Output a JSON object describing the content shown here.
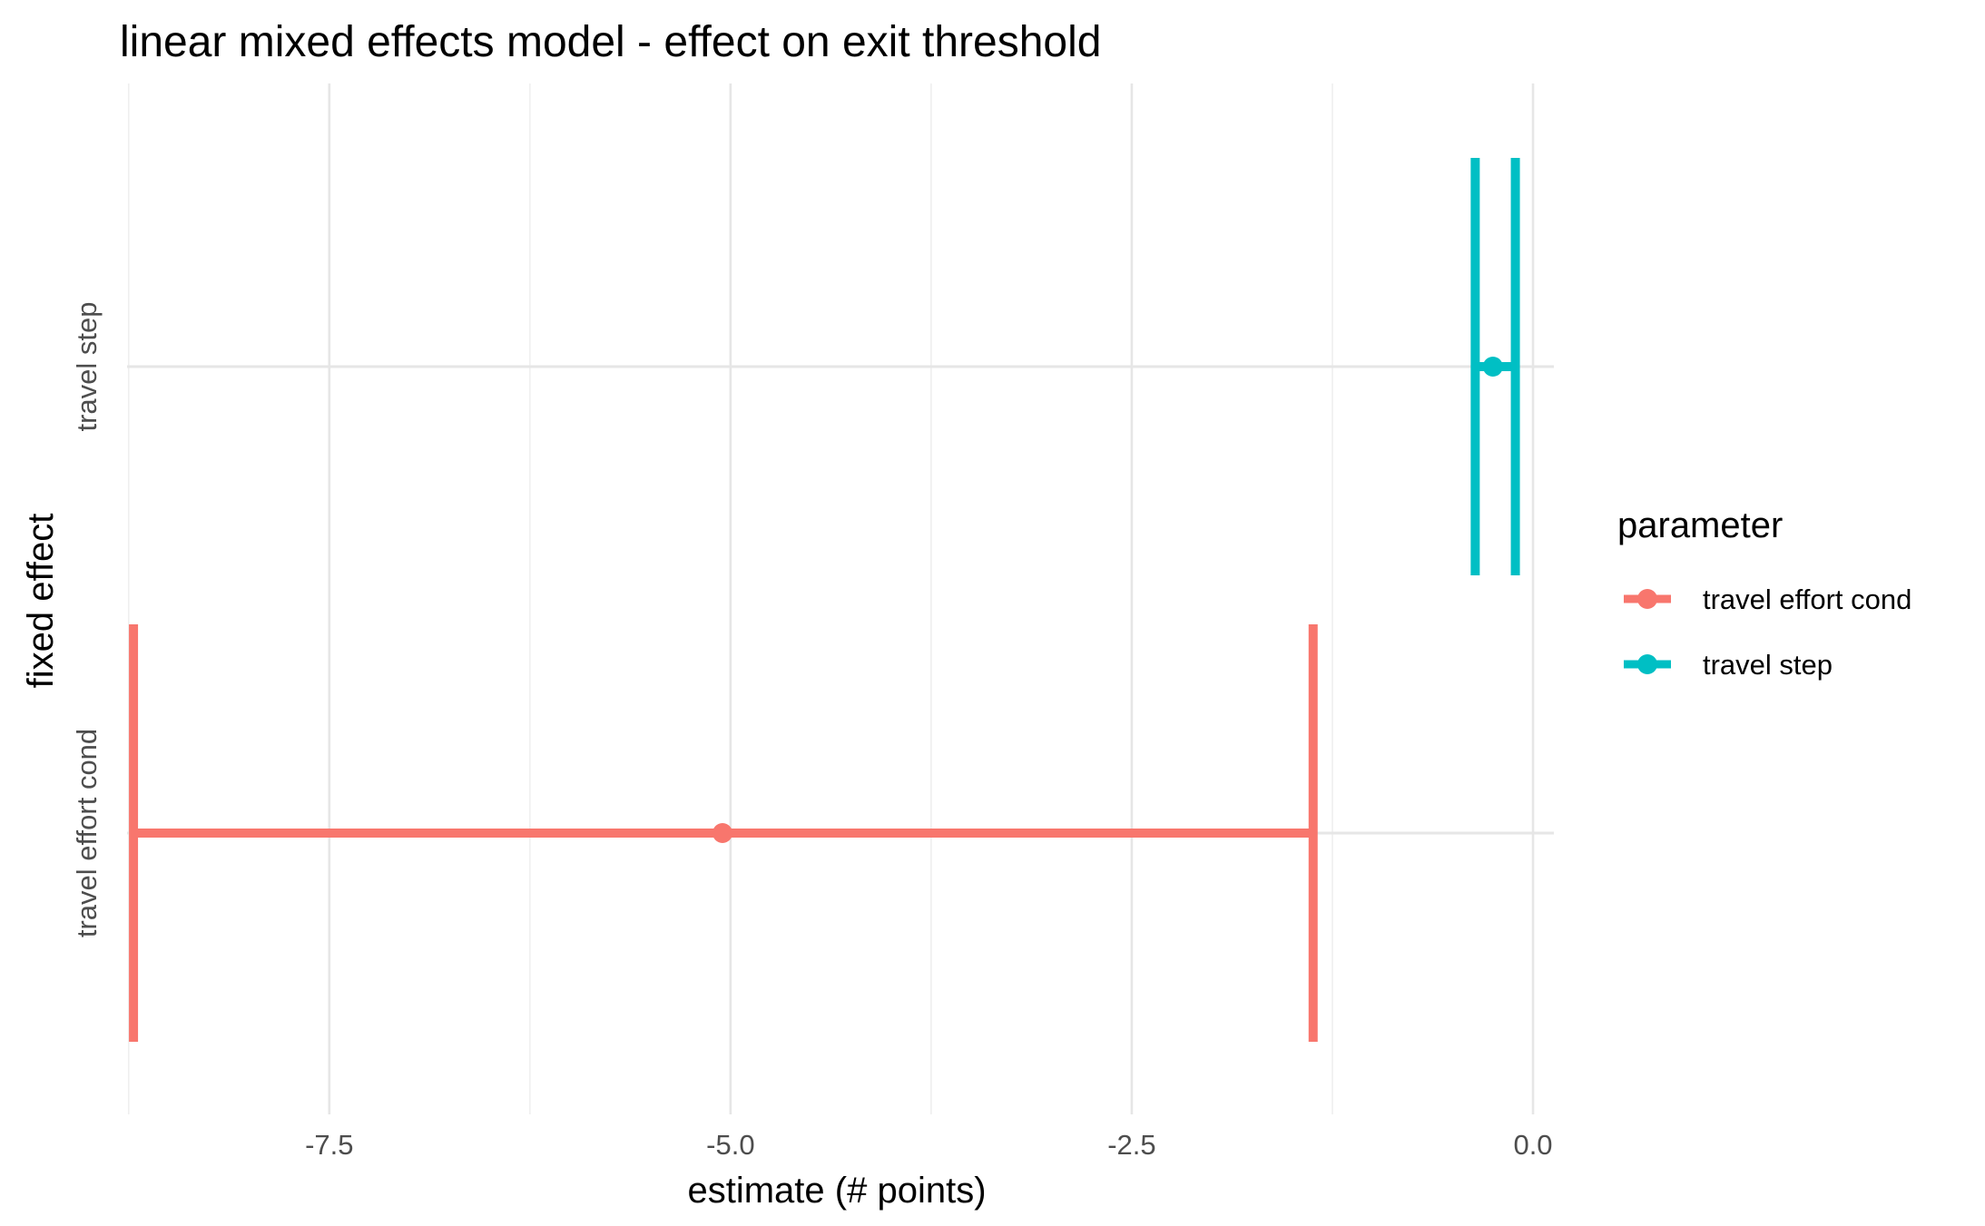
{
  "chart_data": {
    "type": "errorbar",
    "orientation": "horizontal",
    "title": "linear mixed effects model - effect on exit threshold",
    "xlabel": "estimate (# points)",
    "ylabel": "fixed effect",
    "xlim": [
      -8.76,
      0.13
    ],
    "x_ticks": [
      -7.5,
      -5.0,
      -2.5,
      0.0
    ],
    "x_tick_labels": [
      "-7.5",
      "-5.0",
      "-2.5",
      "0.0"
    ],
    "categories": [
      "travel effort cond",
      "travel step"
    ],
    "legend": {
      "title": "parameter",
      "position": "right",
      "entries": [
        "travel effort cond",
        "travel step"
      ]
    },
    "grid": true,
    "series": [
      {
        "name": "travel effort cond",
        "category": "travel effort cond",
        "estimate": -5.05,
        "ci_low": -8.72,
        "ci_high": -1.37,
        "color": "#F8766D"
      },
      {
        "name": "travel step",
        "category": "travel step",
        "estimate": -0.25,
        "ci_low": -0.36,
        "ci_high": -0.11,
        "color": "#00BFC4"
      }
    ]
  }
}
